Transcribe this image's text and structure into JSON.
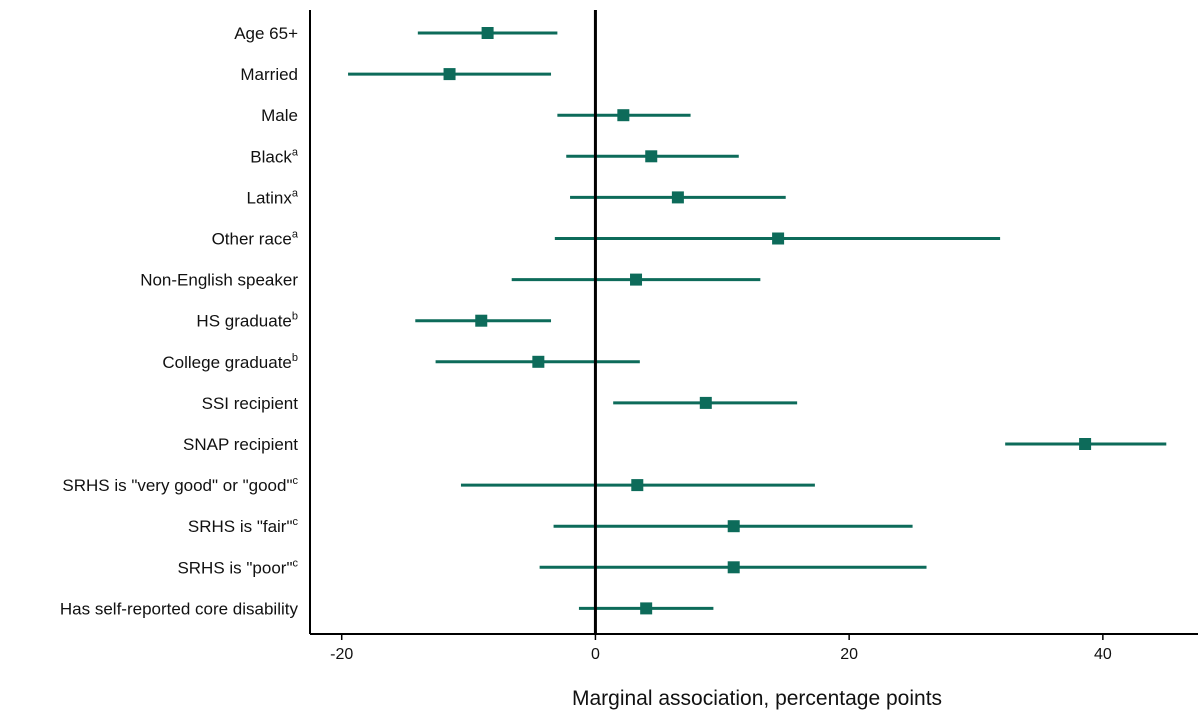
{
  "chart_data": {
    "type": "forest",
    "xlabel": "Marginal association, percentage points",
    "xlim": [
      -22.5,
      47.5
    ],
    "xticks": [
      -20,
      0,
      20,
      40
    ],
    "xtick_labels": [
      "-20",
      "0",
      "20",
      "40"
    ],
    "reference_line": 0,
    "grid": false,
    "marker_color": "#0d6b5a",
    "rows": [
      {
        "label": "Age 65+",
        "sup": "",
        "estimate": -8.5,
        "ci_low": -14.0,
        "ci_high": -3.0
      },
      {
        "label": "Married",
        "sup": "",
        "estimate": -11.5,
        "ci_low": -19.5,
        "ci_high": -3.5
      },
      {
        "label": "Male",
        "sup": "",
        "estimate": 2.2,
        "ci_low": -3.0,
        "ci_high": 7.5
      },
      {
        "label": "Black",
        "sup": "a",
        "estimate": 4.4,
        "ci_low": -2.3,
        "ci_high": 11.3
      },
      {
        "label": "Latinx",
        "sup": "a",
        "estimate": 6.5,
        "ci_low": -2.0,
        "ci_high": 15.0
      },
      {
        "label": "Other race",
        "sup": "a",
        "estimate": 14.4,
        "ci_low": -3.2,
        "ci_high": 31.9
      },
      {
        "label": "Non-English speaker",
        "sup": "",
        "estimate": 3.2,
        "ci_low": -6.6,
        "ci_high": 13.0
      },
      {
        "label": "HS graduate",
        "sup": "b",
        "estimate": -9.0,
        "ci_low": -14.2,
        "ci_high": -3.5
      },
      {
        "label": "College graduate",
        "sup": "b",
        "estimate": -4.5,
        "ci_low": -12.6,
        "ci_high": 3.5
      },
      {
        "label": "SSI recipient",
        "sup": "",
        "estimate": 8.7,
        "ci_low": 1.4,
        "ci_high": 15.9
      },
      {
        "label": "SNAP recipient",
        "sup": "",
        "estimate": 38.6,
        "ci_low": 32.3,
        "ci_high": 45.0
      },
      {
        "label": "SRHS is \"very good\" or \"good\"",
        "sup": "c",
        "estimate": 3.3,
        "ci_low": -10.6,
        "ci_high": 17.3
      },
      {
        "label": "SRHS is \"fair\"",
        "sup": "c",
        "estimate": 10.9,
        "ci_low": -3.3,
        "ci_high": 25.0
      },
      {
        "label": "SRHS is \"poor\"",
        "sup": "c",
        "estimate": 10.9,
        "ci_low": -4.4,
        "ci_high": 26.1
      },
      {
        "label": "Has self-reported core disability",
        "sup": "",
        "estimate": 4.0,
        "ci_low": -1.3,
        "ci_high": 9.3
      }
    ]
  }
}
